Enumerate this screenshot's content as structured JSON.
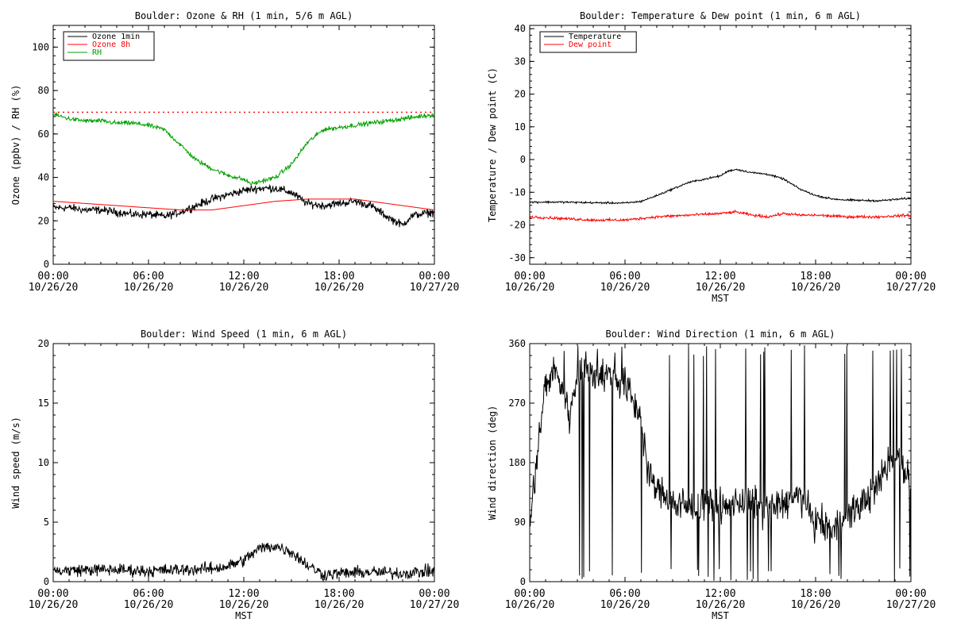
{
  "chart_data": [
    {
      "id": "ozone",
      "type": "line",
      "title": "Boulder: Ozone & RH (1 min, 5/6 m AGL)",
      "ylabel": "Ozone (ppbv) / RH (%)",
      "xlabel": "",
      "ylim": [
        0,
        110
      ],
      "yticks": [
        "0",
        "20",
        "40",
        "60",
        "80",
        "100"
      ],
      "xticks": [
        {
          "time": "00:00",
          "date": "10/26/20"
        },
        {
          "time": "06:00",
          "date": "10/26/20"
        },
        {
          "time": "12:00",
          "date": "10/26/20"
        },
        {
          "time": "18:00",
          "date": "10/26/20"
        },
        {
          "time": "00:00",
          "date": "10/27/20"
        }
      ],
      "xlim": [
        0,
        24
      ],
      "legend_position": "top-left",
      "reference_line": {
        "y": 70,
        "color": "#ff0000",
        "style": "dotted"
      },
      "series": [
        {
          "name": "Ozone 1min",
          "color": "#000000",
          "noise": 1.6,
          "x": [
            0,
            1,
            2,
            3,
            4,
            5,
            6,
            7,
            8,
            9,
            10,
            11,
            12,
            13,
            14,
            15,
            16,
            17,
            18,
            19,
            20,
            21,
            22,
            22.5,
            23,
            24
          ],
          "y": [
            26,
            26,
            25,
            25,
            24,
            23,
            23,
            22,
            24,
            27,
            30,
            32,
            34,
            35,
            35,
            33,
            28,
            27,
            28,
            29,
            27,
            22,
            18,
            22,
            23,
            24
          ]
        },
        {
          "name": "Ozone 8h",
          "color": "#ff0000",
          "noise": 0,
          "x": [
            0,
            2,
            4,
            6,
            8,
            10,
            12,
            14,
            16,
            18,
            19,
            20,
            22,
            24
          ],
          "y": [
            29,
            28,
            27,
            26,
            25,
            25,
            27,
            29,
            30,
            30,
            30,
            29,
            27,
            25
          ]
        },
        {
          "name": "RH",
          "color": "#00a000",
          "noise": 0.9,
          "x": [
            0,
            1,
            2,
            3,
            4,
            5,
            6,
            7,
            8,
            9,
            10,
            11,
            12,
            12.5,
            13,
            14,
            15,
            16,
            17,
            18,
            19,
            20,
            21,
            22,
            23,
            24
          ],
          "y": [
            69,
            67,
            66,
            66,
            65,
            65,
            64,
            62,
            55,
            48,
            44,
            41,
            39,
            37,
            38,
            40,
            46,
            56,
            62,
            63,
            64,
            65,
            66,
            67,
            68,
            69
          ]
        }
      ]
    },
    {
      "id": "temp",
      "type": "line",
      "title": "Boulder: Temperature & Dew point (1 min, 6 m AGL)",
      "ylabel": "Temperature / Dew point (C)",
      "xlabel": "MST",
      "ylim": [
        -32,
        41
      ],
      "yticks": [
        "-30",
        "-20",
        "-10",
        "0",
        "10",
        "20",
        "30",
        "40"
      ],
      "xticks": [
        {
          "time": "00:00",
          "date": "10/26/20"
        },
        {
          "time": "06:00",
          "date": "10/26/20"
        },
        {
          "time": "12:00",
          "date": "10/26/20"
        },
        {
          "time": "18:00",
          "date": "10/26/20"
        },
        {
          "time": "00:00",
          "date": "10/27/20"
        }
      ],
      "xlim": [
        0,
        24
      ],
      "legend_position": "top-left",
      "series": [
        {
          "name": "Temperature",
          "color": "#000000",
          "noise": 0.25,
          "x": [
            0,
            2,
            4,
            6,
            7,
            8,
            9,
            10,
            11,
            12,
            12.5,
            13,
            14,
            15,
            16,
            17,
            18,
            19,
            20,
            22,
            24
          ],
          "y": [
            -13,
            -13,
            -13.2,
            -13.3,
            -12.8,
            -11,
            -9,
            -7,
            -6,
            -5,
            -3.5,
            -3,
            -4,
            -4.5,
            -6,
            -9,
            -11,
            -12,
            -12.4,
            -12.6,
            -11.8
          ]
        },
        {
          "name": "Dew point",
          "color": "#ff0000",
          "noise": 0.35,
          "x": [
            0,
            2,
            4,
            6,
            8,
            10,
            12,
            13,
            14,
            15,
            16,
            17,
            18,
            20,
            22,
            24
          ],
          "y": [
            -17.5,
            -18,
            -18.5,
            -18.5,
            -17.5,
            -17,
            -16.5,
            -16,
            -17,
            -17.5,
            -16.5,
            -17,
            -17,
            -17.5,
            -17.5,
            -17
          ]
        }
      ]
    },
    {
      "id": "wspd",
      "type": "line",
      "title": "Boulder: Wind Speed (1 min, 6 m AGL)",
      "ylabel": "Wind speed (m/s)",
      "xlabel": "MST",
      "ylim": [
        0,
        20
      ],
      "yticks": [
        "0",
        "5",
        "10",
        "15",
        "20"
      ],
      "xticks": [
        {
          "time": "00:00",
          "date": "10/26/20"
        },
        {
          "time": "06:00",
          "date": "10/26/20"
        },
        {
          "time": "12:00",
          "date": "10/26/20"
        },
        {
          "time": "18:00",
          "date": "10/26/20"
        },
        {
          "time": "00:00",
          "date": "10/27/20"
        }
      ],
      "xlim": [
        0,
        24
      ],
      "series": [
        {
          "name": "",
          "color": "#000000",
          "noise": 0.45,
          "x": [
            0,
            2,
            4,
            6,
            8,
            10,
            11,
            12,
            13,
            14,
            15,
            16,
            17,
            18,
            20,
            22,
            24
          ],
          "y": [
            0.9,
            1.0,
            1.0,
            0.9,
            1.0,
            1.1,
            1.3,
            1.8,
            2.8,
            3.0,
            2.5,
            1.4,
            0.6,
            0.7,
            0.8,
            0.7,
            0.9
          ]
        }
      ]
    },
    {
      "id": "wdir",
      "type": "line",
      "title": "Boulder: Wind Direction (1 min, 6 m AGL)",
      "ylabel": "Wind direction (deg)",
      "xlabel": "MST",
      "ylim": [
        0,
        360
      ],
      "yticks": [
        "0",
        "90",
        "180",
        "270",
        "360"
      ],
      "xticks": [
        {
          "time": "00:00",
          "date": "10/26/20"
        },
        {
          "time": "06:00",
          "date": "10/26/20"
        },
        {
          "time": "12:00",
          "date": "10/26/20"
        },
        {
          "time": "18:00",
          "date": "10/26/20"
        },
        {
          "time": "00:00",
          "date": "10/27/20"
        }
      ],
      "xlim": [
        0,
        24
      ],
      "series": [
        {
          "name": "",
          "color": "#000000",
          "noise": 22,
          "spikes": 0.06,
          "x": [
            0,
            0.5,
            1,
            1.5,
            2,
            2.5,
            3,
            4,
            5,
            6,
            7,
            7.5,
            8,
            9,
            10,
            11,
            12,
            13,
            14,
            15,
            16,
            17,
            18,
            19,
            20,
            21,
            22,
            23,
            24
          ],
          "y": [
            80,
            200,
            300,
            320,
            300,
            250,
            310,
            320,
            310,
            300,
            250,
            160,
            140,
            120,
            110,
            120,
            110,
            120,
            120,
            110,
            120,
            130,
            90,
            80,
            100,
            120,
            150,
            200,
            150
          ]
        }
      ]
    }
  ]
}
